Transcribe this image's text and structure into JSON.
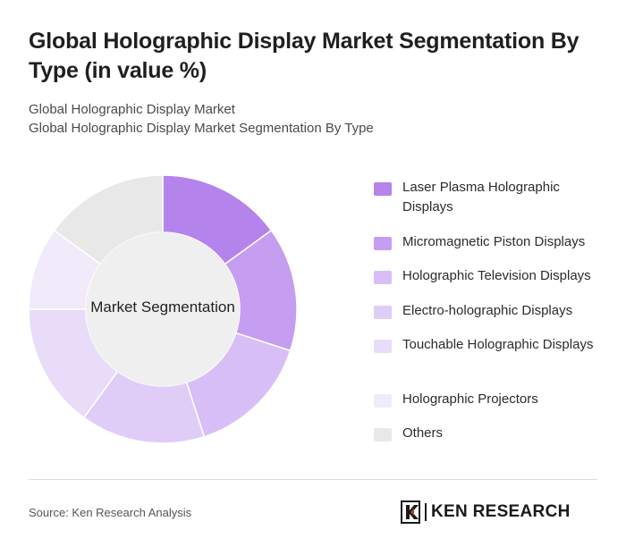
{
  "title": "Global Holographic Display Market Segmentation By Type (in value %)",
  "subtitle_lines": [
    "Global Holographic Display Market",
    "Global Holographic Display Market Segmentation By Type"
  ],
  "chart_data": {
    "type": "pie",
    "variant": "donut",
    "center_label": "Market Segmentation",
    "categories": [
      "Laser Plasma Holographic Displays",
      "Micromagnetic Piston Displays",
      "Holographic Television Displays",
      "Electro-holographic Displays",
      "Touchable Holographic Displays",
      "Holographic Projectors",
      "Others"
    ],
    "values": [
      15,
      15,
      15,
      15,
      15,
      10,
      15
    ],
    "colors": [
      "#b583ec",
      "#c59df1",
      "#d8bef6",
      "#e0cdf7",
      "#e8dcf9",
      "#f0eafb",
      "#e8e8e8"
    ],
    "legend_position": "right"
  },
  "footer": {
    "source": "Source: Ken Research Analysis",
    "brand": "KEN RESEARCH"
  }
}
